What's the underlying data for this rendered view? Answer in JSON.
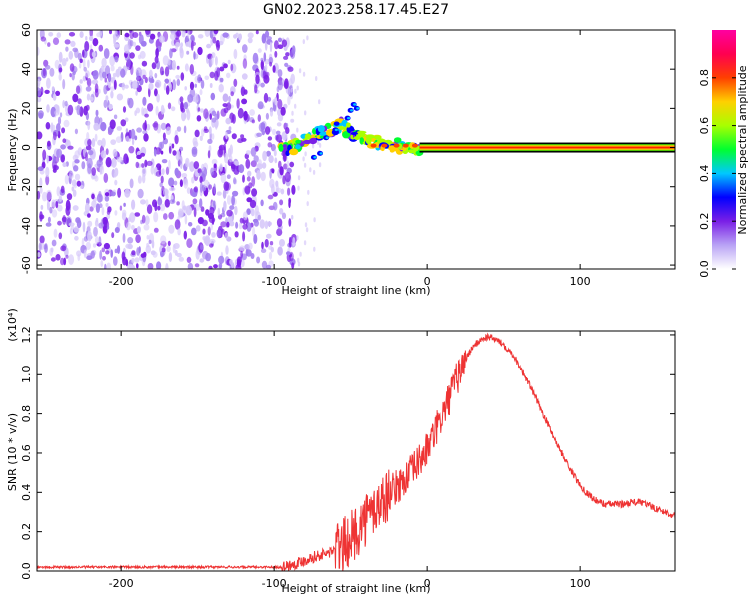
{
  "title": "GN02.2023.258.17.45.E27",
  "chart_data": [
    {
      "type": "heatmap",
      "name": "spectrogram",
      "xlabel": "Height of straight line (km)",
      "ylabel": "Frequency (Hz)",
      "xlim": [
        -255,
        162
      ],
      "ylim": [
        -62,
        60
      ],
      "xticks": [
        -200,
        -100,
        0,
        100
      ],
      "yticks": [
        -60,
        -40,
        -20,
        0,
        20,
        40,
        60
      ],
      "colorbar": {
        "label": "Normalized spectral amplitude",
        "range": [
          0.0,
          1.0
        ],
        "ticks": [
          "0.0",
          "0.2",
          "0.4",
          "0.6",
          "0.8"
        ],
        "colors": [
          "#ffffff",
          "#b9a3f5",
          "#7a1fe6",
          "#0000ff",
          "#00c8ff",
          "#00ff30",
          "#a8ff00",
          "#ffd000",
          "#ff4000",
          "#ff0050",
          "#ff00a0"
        ]
      },
      "features": {
        "noise_region_x": [
          -255,
          -92
        ],
        "tone_line_x": [
          -5,
          162
        ],
        "tone_freq_hz": 0,
        "signal_track": [
          [
            -97,
            -2
          ],
          [
            -88,
            0
          ],
          [
            -80,
            4
          ],
          [
            -72,
            7
          ],
          [
            -64,
            9
          ],
          [
            -56,
            11
          ],
          [
            -48,
            7
          ],
          [
            -40,
            4
          ],
          [
            -30,
            2
          ],
          [
            -20,
            1
          ],
          [
            -10,
            0
          ],
          [
            -5,
            0
          ]
        ]
      }
    },
    {
      "type": "line",
      "name": "snr",
      "xlabel": "Height of straight line (km)",
      "ylabel": "SNR (10 * v/v)",
      "multiplier": "(x10⁴)",
      "xlim": [
        -255,
        162
      ],
      "ylim": [
        0,
        1.22
      ],
      "xticks": [
        -200,
        -100,
        0,
        100
      ],
      "yticks": [
        "0.0",
        "0.2",
        "0.4",
        "0.6",
        "0.8",
        "1.0",
        "1.2"
      ],
      "color": "#ee3333",
      "series": [
        {
          "name": "SNR",
          "x": [
            -255,
            -200,
            -150,
            -110,
            -95,
            -85,
            -75,
            -65,
            -55,
            -48,
            -42,
            -36,
            -30,
            -24,
            -18,
            -12,
            -6,
            0,
            6,
            12,
            18,
            24,
            30,
            36,
            40,
            44,
            50,
            56,
            62,
            68,
            74,
            80,
            86,
            92,
            98,
            104,
            110,
            116,
            122,
            128,
            134,
            140,
            146,
            152,
            162
          ],
          "y": [
            0.02,
            0.02,
            0.02,
            0.02,
            0.02,
            0.04,
            0.07,
            0.09,
            0.13,
            0.18,
            0.25,
            0.3,
            0.35,
            0.4,
            0.44,
            0.49,
            0.55,
            0.62,
            0.72,
            0.83,
            0.95,
            1.06,
            1.14,
            1.18,
            1.19,
            1.18,
            1.15,
            1.1,
            1.02,
            0.93,
            0.83,
            0.73,
            0.63,
            0.54,
            0.46,
            0.4,
            0.36,
            0.34,
            0.34,
            0.34,
            0.35,
            0.35,
            0.33,
            0.31,
            0.28
          ]
        }
      ]
    }
  ]
}
